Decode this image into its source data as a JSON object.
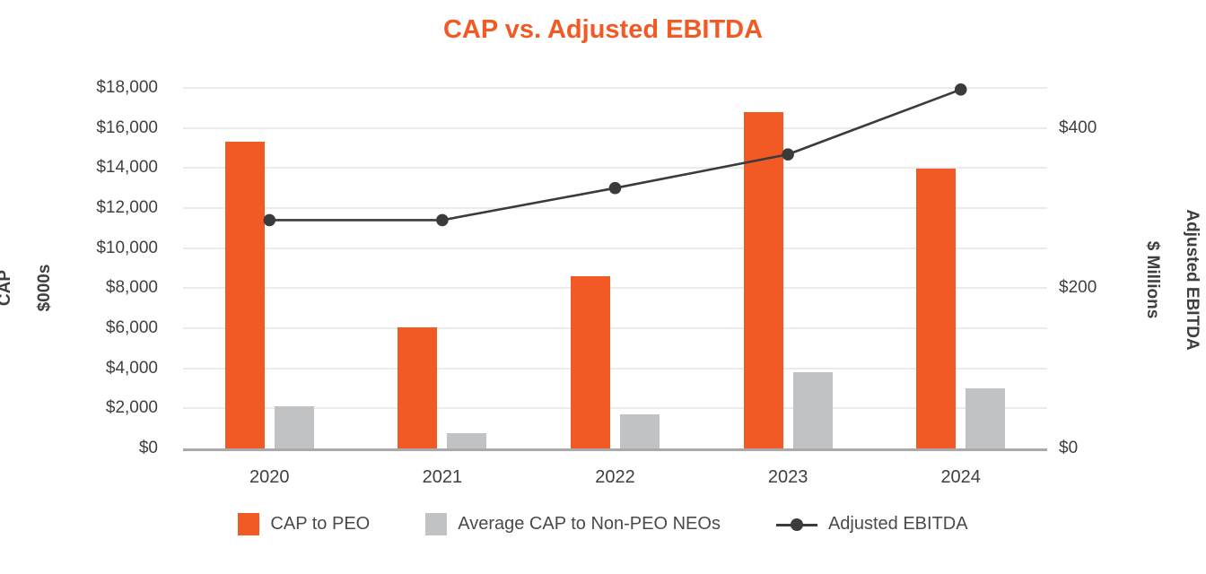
{
  "title": "CAP vs. Adjusted EBITDA",
  "colors": {
    "title": "#f15a24",
    "bar_peo": "#f15a24",
    "bar_nonpeo": "#c1c2c4",
    "line": "#3b3b3d",
    "gridline": "#ebebeb",
    "axis_line": "#a9a9a9",
    "tick_text": "#404040"
  },
  "chart_data": {
    "type": "combo-bar-line",
    "title": "CAP vs. Adjusted EBITDA",
    "categories": [
      "2020",
      "2021",
      "2022",
      "2023",
      "2024"
    ],
    "series": [
      {
        "name": "CAP to PEO",
        "type": "bar",
        "axis": "left",
        "color": "#f15a24",
        "values": [
          15300,
          6050,
          8600,
          16800,
          13950
        ]
      },
      {
        "name": "Average CAP to Non-PEO NEOs",
        "type": "bar",
        "axis": "left",
        "color": "#c1c2c4",
        "values": [
          2100,
          750,
          1700,
          3800,
          3000
        ]
      },
      {
        "name": "Adjusted EBITDA",
        "type": "line",
        "axis": "right",
        "color": "#3b3b3d",
        "values": [
          285,
          285,
          325,
          367,
          448
        ]
      }
    ],
    "left_axis": {
      "title_line1": "CAP",
      "title_line2": "$000s",
      "min": 0,
      "max": 18000,
      "step": 2000,
      "tick_labels": [
        "$0",
        "$2,000",
        "$4,000",
        "$6,000",
        "$8,000",
        "$10,000",
        "$12,000",
        "$14,000",
        "$16,000",
        "$18,000"
      ]
    },
    "right_axis": {
      "title_line1": "Adjusted EBITDA",
      "title_line2": "$ Millions",
      "min": 0,
      "max": 450,
      "ticks": [
        {
          "value": 0,
          "label": "$0"
        },
        {
          "value": 200,
          "label": "$200"
        },
        {
          "value": 400,
          "label": "$400"
        }
      ]
    },
    "grid": true,
    "legend_position": "bottom"
  }
}
